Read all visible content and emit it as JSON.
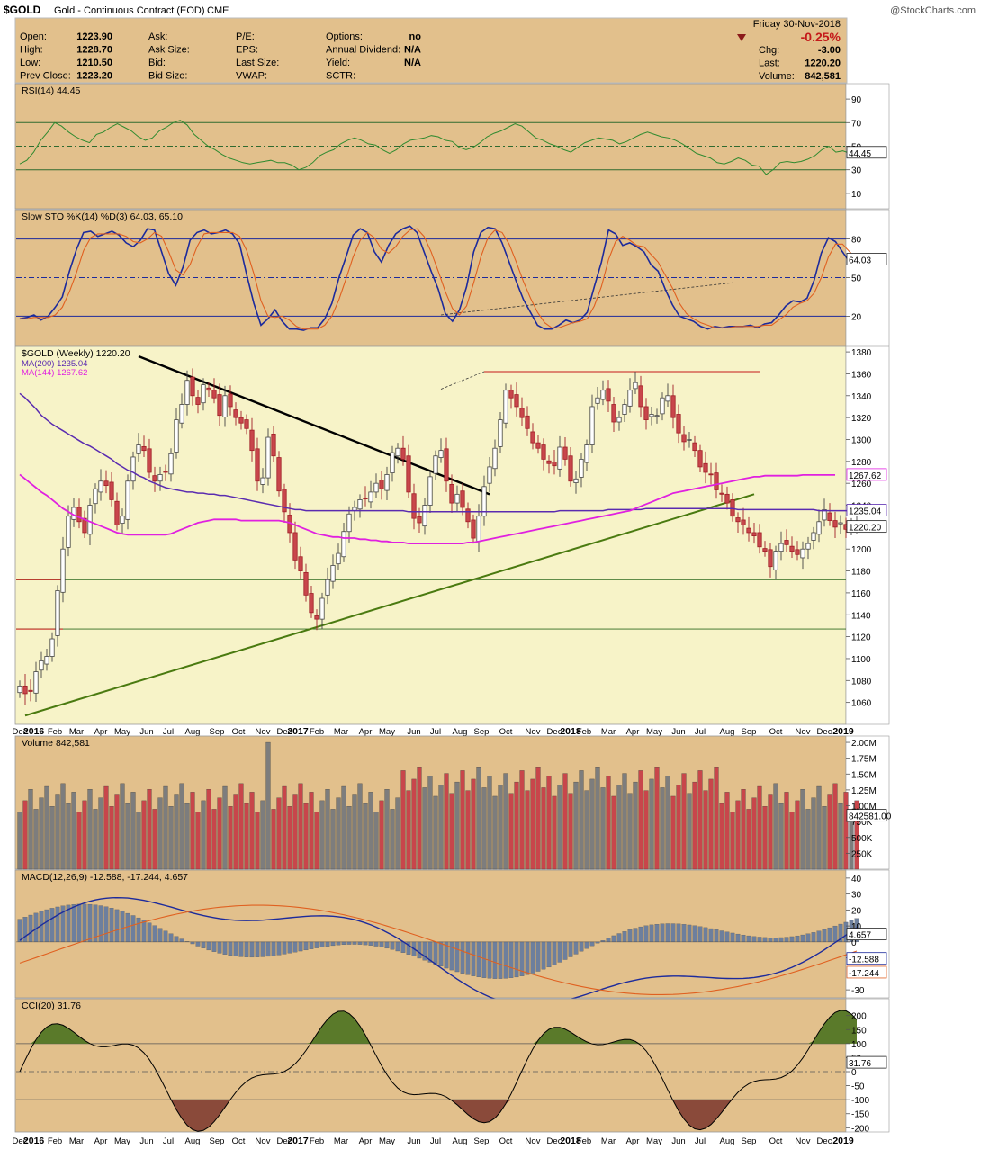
{
  "header": {
    "symbol": "$GOLD",
    "name": "Gold - Continuous Contract (EOD)",
    "exchange": "CME",
    "watermark": "@StockCharts.com",
    "date": "Friday 30-Nov-2018",
    "pct_change": "-0.25%",
    "quote_left": [
      {
        "label": "Open:",
        "value": "1223.90"
      },
      {
        "label": "High:",
        "value": "1228.70"
      },
      {
        "label": "Low:",
        "value": "1210.50"
      },
      {
        "label": "Prev Close:",
        "value": "1223.20"
      }
    ],
    "quote_mid": [
      {
        "label": "Ask:",
        "value": ""
      },
      {
        "label": "Ask Size:",
        "value": ""
      },
      {
        "label": "Bid:",
        "value": ""
      },
      {
        "label": "Bid Size:",
        "value": ""
      }
    ],
    "quote_mid2": [
      {
        "label": "P/E:",
        "value": ""
      },
      {
        "label": "EPS:",
        "value": ""
      },
      {
        "label": "Last Size:",
        "value": ""
      },
      {
        "label": "VWAP:",
        "value": ""
      }
    ],
    "quote_right": [
      {
        "label": "Options:",
        "value": "no"
      },
      {
        "label": "Annual Dividend:",
        "value": "N/A"
      },
      {
        "label": "Yield:",
        "value": "N/A"
      },
      {
        "label": "SCTR:",
        "value": ""
      }
    ],
    "quote_far": [
      {
        "label": "Chg:",
        "value": "-3.00"
      },
      {
        "label": "Last:",
        "value": "1220.20"
      },
      {
        "label": "Volume:",
        "value": "842,581"
      }
    ]
  },
  "colors": {
    "panel_bg": "#e2c08c",
    "price_bg": "#f7f3c8",
    "up": "#7d7d7d",
    "down": "#c8464b",
    "ma200": "#5a2bb0",
    "ma144": "#e020e0",
    "rsi": "#2f8a2f",
    "sto_k": "#1c2a9c",
    "sto_d": "#e06020",
    "macd": "#1c2a9c",
    "signal": "#e06020",
    "hist": "#6d7f9d",
    "cci": "#000000",
    "cci_pos": "#5a7a2a",
    "cci_neg": "#8a4a3a",
    "trend_green": "#4a7a10"
  },
  "chart_data": [
    {
      "type": "line",
      "panel": "rsi",
      "legend": "RSI(14) 44.45",
      "ylim": [
        0,
        100
      ],
      "ticks": [
        "90",
        "70",
        "50",
        "30",
        "10"
      ],
      "tick_values": [
        90,
        70,
        50,
        30,
        10
      ],
      "last_label": "44.45",
      "last_value": 44.45,
      "values": [
        35,
        38,
        45,
        55,
        62,
        70,
        67,
        62,
        58,
        55,
        53,
        60,
        62,
        66,
        69,
        66,
        63,
        58,
        55,
        57,
        63,
        66,
        70,
        72,
        68,
        60,
        55,
        50,
        47,
        43,
        40,
        38,
        36,
        35,
        36,
        37,
        38,
        36,
        36,
        34,
        30,
        32,
        36,
        42,
        45,
        47,
        52,
        55,
        57,
        55,
        52,
        51,
        47,
        44,
        47,
        52,
        55,
        56,
        57,
        59,
        58,
        55,
        54,
        49,
        47,
        49,
        53,
        58,
        61,
        63,
        66,
        69,
        67,
        62,
        57,
        55,
        52,
        50,
        47,
        45,
        49,
        53,
        55,
        57,
        56,
        55,
        52,
        54,
        57,
        60,
        62,
        60,
        58,
        57,
        55,
        52,
        48,
        44,
        42,
        40,
        36,
        35,
        37,
        40,
        38,
        34,
        33,
        26,
        30,
        36,
        37,
        36,
        37,
        39,
        42,
        47,
        50,
        45,
        46,
        44,
        44.45
      ]
    },
    {
      "type": "line",
      "panel": "slow_sto",
      "legend": "Slow STO %K(14) %D(3) 64.03, 65.10",
      "ylim": [
        0,
        100
      ],
      "ticks": [
        "80",
        "50",
        "20"
      ],
      "tick_values": [
        80,
        50,
        20
      ],
      "last_label": "64.03",
      "series": [
        {
          "name": "%K(14)",
          "values": [
            18,
            19,
            21,
            17,
            20,
            27,
            35,
            55,
            72,
            85,
            86,
            82,
            84,
            86,
            83,
            77,
            74,
            79,
            88,
            87,
            70,
            53,
            44,
            58,
            79,
            85,
            87,
            84,
            85,
            87,
            84,
            76,
            52,
            30,
            13,
            18,
            25,
            16,
            10,
            10,
            9,
            11,
            11,
            18,
            30,
            50,
            66,
            83,
            88,
            85,
            70,
            62,
            75,
            84,
            88,
            90,
            85,
            70,
            55,
            41,
            22,
            16,
            25,
            43,
            70,
            85,
            89,
            88,
            77,
            62,
            47,
            33,
            23,
            13,
            10,
            10,
            13,
            17,
            15,
            17,
            23,
            43,
            62,
            87,
            84,
            75,
            77,
            74,
            70,
            60,
            55,
            41,
            29,
            20,
            18,
            16,
            12,
            10,
            12,
            11,
            12,
            12,
            12,
            13,
            11,
            14,
            15,
            21,
            28,
            32,
            31,
            34,
            48,
            69,
            81,
            78,
            70,
            62,
            64.03
          ]
        },
        {
          "name": "%D(3)",
          "values": [
            18,
            18,
            19,
            19,
            19,
            21,
            27,
            39,
            54,
            71,
            81,
            84,
            84,
            84,
            84,
            82,
            78,
            77,
            80,
            85,
            82,
            70,
            56,
            52,
            60,
            74,
            84,
            85,
            85,
            85,
            85,
            82,
            71,
            53,
            32,
            20,
            19,
            20,
            17,
            12,
            10,
            10,
            10,
            13,
            20,
            33,
            49,
            66,
            79,
            85,
            81,
            72,
            69,
            74,
            82,
            87,
            88,
            82,
            70,
            55,
            39,
            26,
            21,
            28,
            46,
            66,
            81,
            87,
            85,
            76,
            62,
            47,
            34,
            23,
            15,
            11,
            11,
            13,
            15,
            16,
            18,
            28,
            43,
            64,
            78,
            82,
            79,
            75,
            74,
            68,
            62,
            52,
            42,
            30,
            22,
            18,
            15,
            13,
            11,
            11,
            11,
            12,
            12,
            12,
            12,
            13,
            13,
            17,
            21,
            27,
            30,
            32,
            38,
            50,
            66,
            76,
            76,
            70,
            65.1
          ]
        }
      ]
    },
    {
      "type": "candlestick",
      "panel": "price",
      "legend": "$GOLD (Weekly) 1220.20",
      "ylim": [
        1040,
        1385
      ],
      "ticks": [
        "1380",
        "1360",
        "1340",
        "1320",
        "1300",
        "1280",
        "1260",
        "1240",
        "1220",
        "1200",
        "1180",
        "1160",
        "1140",
        "1120",
        "1100",
        "1080",
        "1060"
      ],
      "tick_values": [
        1380,
        1360,
        1340,
        1320,
        1300,
        1280,
        1260,
        1240,
        1220,
        1200,
        1180,
        1160,
        1140,
        1120,
        1100,
        1080,
        1060
      ],
      "x_labels": [
        "Dec",
        "2016",
        "Feb",
        "Mar",
        "Apr",
        "May",
        "Jun",
        "Jul",
        "Aug",
        "Sep",
        "Oct",
        "Nov",
        "Dec",
        "2017",
        "Feb",
        "Mar",
        "Apr",
        "May",
        "Jun",
        "Jul",
        "Aug",
        "Sep",
        "Oct",
        "Nov",
        "Dec",
        "2018",
        "Feb",
        "Mar",
        "Apr",
        "May",
        "Jun",
        "Jul",
        "Aug",
        "Sep",
        "Oct",
        "Nov",
        "Dec",
        "2019"
      ],
      "x_label_index": [
        0,
        2.6,
        6.5,
        10.5,
        15,
        19,
        23.5,
        27.5,
        32,
        36.5,
        40.5,
        45,
        49,
        51.5,
        55,
        59.5,
        64,
        68,
        73,
        77,
        81.5,
        85.5,
        90,
        95,
        99,
        102,
        104.5,
        109,
        113.5,
        117.5,
        122,
        126,
        131,
        135,
        140,
        145,
        149,
        152.5
      ],
      "last_label": "1220.20",
      "close": [
        1075,
        1068,
        1070,
        1088,
        1098,
        1102,
        1118,
        1162,
        1200,
        1230,
        1238,
        1225,
        1215,
        1240,
        1255,
        1262,
        1258,
        1245,
        1222,
        1230,
        1262,
        1284,
        1295,
        1290,
        1270,
        1262,
        1268,
        1270,
        1287,
        1318,
        1332,
        1354,
        1340,
        1332,
        1350,
        1345,
        1338,
        1322,
        1340,
        1330,
        1320,
        1315,
        1310,
        1290,
        1262,
        1265,
        1302,
        1285,
        1253,
        1234,
        1215,
        1190,
        1180,
        1158,
        1142,
        1136,
        1155,
        1172,
        1185,
        1196,
        1216,
        1232,
        1238,
        1245,
        1246,
        1252,
        1260,
        1255,
        1268,
        1288,
        1292,
        1282,
        1252,
        1228,
        1224,
        1240,
        1266,
        1285,
        1290,
        1262,
        1242,
        1250,
        1238,
        1225,
        1210,
        1230,
        1257,
        1275,
        1292,
        1318,
        1345,
        1338,
        1330,
        1320,
        1310,
        1297,
        1292,
        1282,
        1278,
        1276,
        1293,
        1282,
        1262,
        1264,
        1282,
        1295,
        1330,
        1338,
        1345,
        1335,
        1316,
        1320,
        1332,
        1345,
        1352,
        1330,
        1318,
        1323,
        1322,
        1338,
        1340,
        1320,
        1306,
        1298,
        1300,
        1290,
        1275,
        1270,
        1268,
        1254,
        1250,
        1242,
        1230,
        1225,
        1222,
        1215,
        1212,
        1202,
        1198,
        1184,
        1198,
        1205,
        1204,
        1198,
        1195,
        1200,
        1205,
        1215,
        1225,
        1236,
        1226,
        1220,
        1224,
        1218,
        1223.2,
        1220.2
      ],
      "series": [
        {
          "name": "MA(200) 1235.04",
          "last_label": "1235.04",
          "values": [
            1342,
            1338,
            1333,
            1328,
            1322,
            1318,
            1314,
            1311,
            1308,
            1305,
            1302,
            1299,
            1296,
            1294,
            1291,
            1288,
            1285,
            1282,
            1278,
            1275,
            1272,
            1270,
            1267,
            1265,
            1262,
            1260,
            1258,
            1256,
            1255,
            1254,
            1253,
            1252,
            1252,
            1251,
            1251,
            1250,
            1250,
            1249,
            1249,
            1248,
            1247,
            1246,
            1245,
            1244,
            1243,
            1242,
            1241,
            1240,
            1239,
            1238,
            1237,
            1236,
            1236,
            1235,
            1235,
            1235,
            1235,
            1235,
            1235,
            1235,
            1235,
            1235,
            1235,
            1235,
            1235,
            1235,
            1235,
            1235,
            1235,
            1235,
            1235,
            1235,
            1234,
            1234,
            1234,
            1234,
            1234,
            1234,
            1234,
            1234,
            1234,
            1234,
            1234,
            1234,
            1234,
            1234,
            1234,
            1234,
            1234,
            1234,
            1234,
            1234,
            1234,
            1234,
            1234,
            1234,
            1234,
            1234,
            1234,
            1234,
            1235,
            1235,
            1235,
            1235,
            1235,
            1235,
            1235,
            1235,
            1235,
            1236,
            1236,
            1236,
            1236,
            1236,
            1236,
            1236,
            1237,
            1237,
            1237,
            1237,
            1237,
            1237,
            1237,
            1237,
            1237,
            1237,
            1237,
            1237,
            1237,
            1237,
            1237,
            1237,
            1237,
            1236,
            1236,
            1236,
            1236,
            1236,
            1236,
            1236,
            1236,
            1236,
            1236,
            1236,
            1236,
            1236,
            1236,
            1236,
            1235,
            1235,
            1235,
            1235,
            1235.04,
            1235.04,
            1235.04,
            1235.04
          ]
        },
        {
          "name": "MA(144) 1267.62",
          "last_label": "1267.62",
          "values": [
            1268,
            1264,
            1260,
            1256,
            1252,
            1249,
            1245,
            1241,
            1237,
            1234,
            1231,
            1229,
            1227,
            1225,
            1223,
            1221,
            1219,
            1217,
            1215,
            1214,
            1213,
            1213,
            1213,
            1213,
            1213,
            1213,
            1213,
            1213,
            1214,
            1216,
            1218,
            1220,
            1222,
            1224,
            1225,
            1226,
            1227,
            1227,
            1227,
            1227,
            1227,
            1226,
            1226,
            1226,
            1226,
            1226,
            1226,
            1226,
            1226,
            1225,
            1224,
            1222,
            1220,
            1218,
            1216,
            1214,
            1213,
            1212,
            1211,
            1211,
            1210,
            1210,
            1210,
            1209,
            1209,
            1208,
            1208,
            1207,
            1207,
            1206,
            1206,
            1206,
            1205,
            1205,
            1205,
            1205,
            1205,
            1205,
            1205,
            1205,
            1205,
            1205,
            1205,
            1206,
            1206,
            1207,
            1208,
            1209,
            1210,
            1211,
            1212,
            1213,
            1214,
            1215,
            1216,
            1217,
            1218,
            1219,
            1220,
            1221,
            1222,
            1223,
            1224,
            1225,
            1226,
            1227,
            1228,
            1229,
            1230,
            1231,
            1232,
            1233,
            1234,
            1235,
            1237,
            1239,
            1241,
            1243,
            1245,
            1247,
            1249,
            1251,
            1252,
            1253,
            1254,
            1255,
            1256,
            1257,
            1258,
            1259,
            1260,
            1261,
            1262,
            1263,
            1264,
            1265,
            1266,
            1266,
            1267,
            1267,
            1267,
            1267,
            1267,
            1267,
            1267,
            1267.62,
            1267.62,
            1267.62,
            1267.62,
            1267.62,
            1267.62,
            1267.62
          ]
        }
      ]
    },
    {
      "type": "bar",
      "panel": "volume",
      "legend": "Volume 842,581",
      "ylim": [
        0,
        2100000
      ],
      "ticks": [
        "2.00M",
        "1.75M",
        "1.50M",
        "1.25M",
        "1.00M",
        "750K",
        "500K",
        "250K"
      ],
      "tick_values": [
        2000000,
        1750000,
        1500000,
        1250000,
        1000000,
        750000,
        500000,
        250000
      ],
      "last_label": "842581.00",
      "last_value": 842581
    },
    {
      "type": "line",
      "panel": "macd",
      "legend": "MACD(12,26,9) -12.588, -17.244, 4.657",
      "ylim": [
        -35,
        45
      ],
      "ticks": [
        "40",
        "30",
        "20",
        "10",
        "0",
        "-10",
        "-20",
        "-30"
      ],
      "tick_values": [
        40,
        30,
        20,
        10,
        0,
        -10,
        -20,
        -30
      ],
      "last_labels": [
        "4.657",
        "-12.588",
        "-17.244"
      ]
    },
    {
      "type": "line",
      "panel": "cci",
      "legend": "CCI(20) 31.76",
      "ylim": [
        -215,
        260
      ],
      "ticks": [
        "200",
        "150",
        "100",
        "50",
        "0",
        "-50",
        "-100",
        "-150",
        "-200"
      ],
      "tick_values": [
        200,
        150,
        100,
        50,
        0,
        -50,
        -100,
        -150,
        -200
      ],
      "last_label": "31.76",
      "last_value": 31.76
    }
  ]
}
